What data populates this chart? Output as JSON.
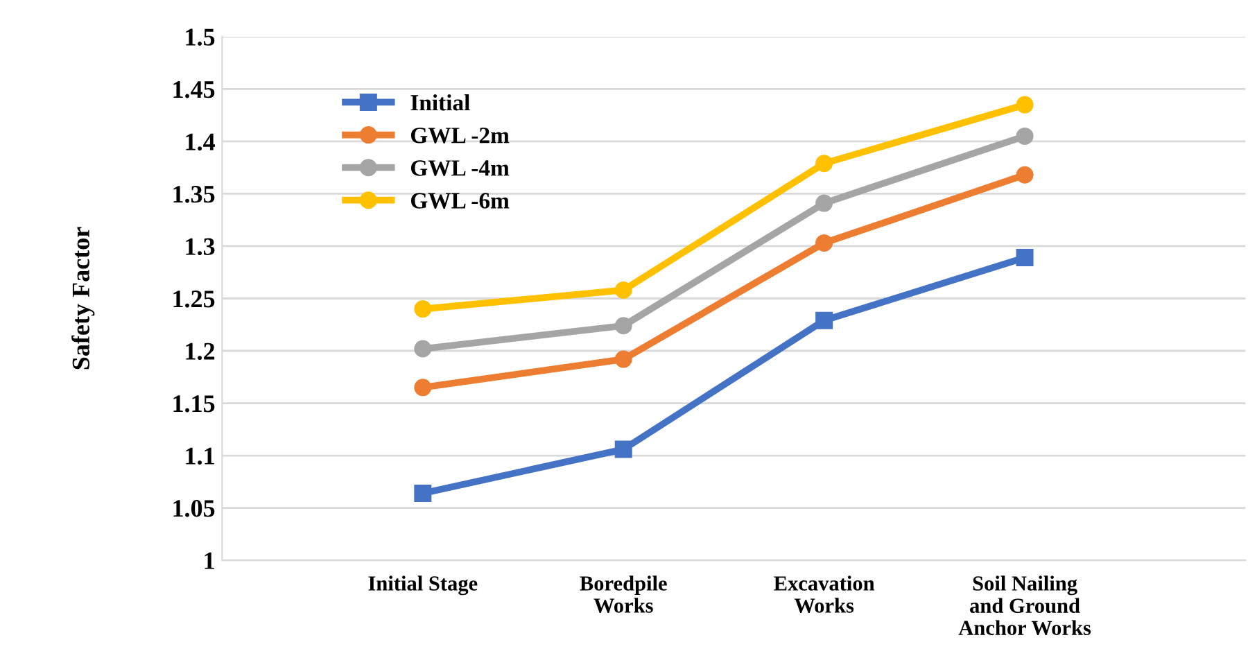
{
  "chart_data": {
    "type": "line",
    "ylabel": "Safety Factor",
    "categories": [
      null,
      "Initial Stage",
      "Boredpile\nWorks",
      "Excavation\nWorks",
      "Soil Nailing\nand Ground\nAnchor Works",
      null
    ],
    "series": [
      {
        "name": "Initial",
        "color": "#4472c4",
        "marker": "square",
        "values": [
          null,
          1.064,
          1.106,
          1.229,
          1.289,
          null
        ]
      },
      {
        "name": "GWL -2m",
        "color": "#ed7d31",
        "marker": "circle",
        "values": [
          null,
          1.165,
          1.192,
          1.303,
          1.368,
          null
        ]
      },
      {
        "name": "GWL -4m",
        "color": "#a5a5a5",
        "marker": "circle",
        "values": [
          null,
          1.202,
          1.224,
          1.341,
          1.405,
          null
        ]
      },
      {
        "name": "GWL -6m",
        "color": "#ffc000",
        "marker": "circle",
        "values": [
          null,
          1.24,
          1.258,
          1.379,
          1.435,
          null
        ]
      }
    ],
    "ylim": [
      1,
      1.5
    ],
    "yticks": [
      1,
      1.05,
      1.1,
      1.15,
      1.2,
      1.25,
      1.3,
      1.35,
      1.4,
      1.45,
      1.5
    ],
    "grid": "y",
    "legend": "top left",
    "line_style": "solid"
  }
}
